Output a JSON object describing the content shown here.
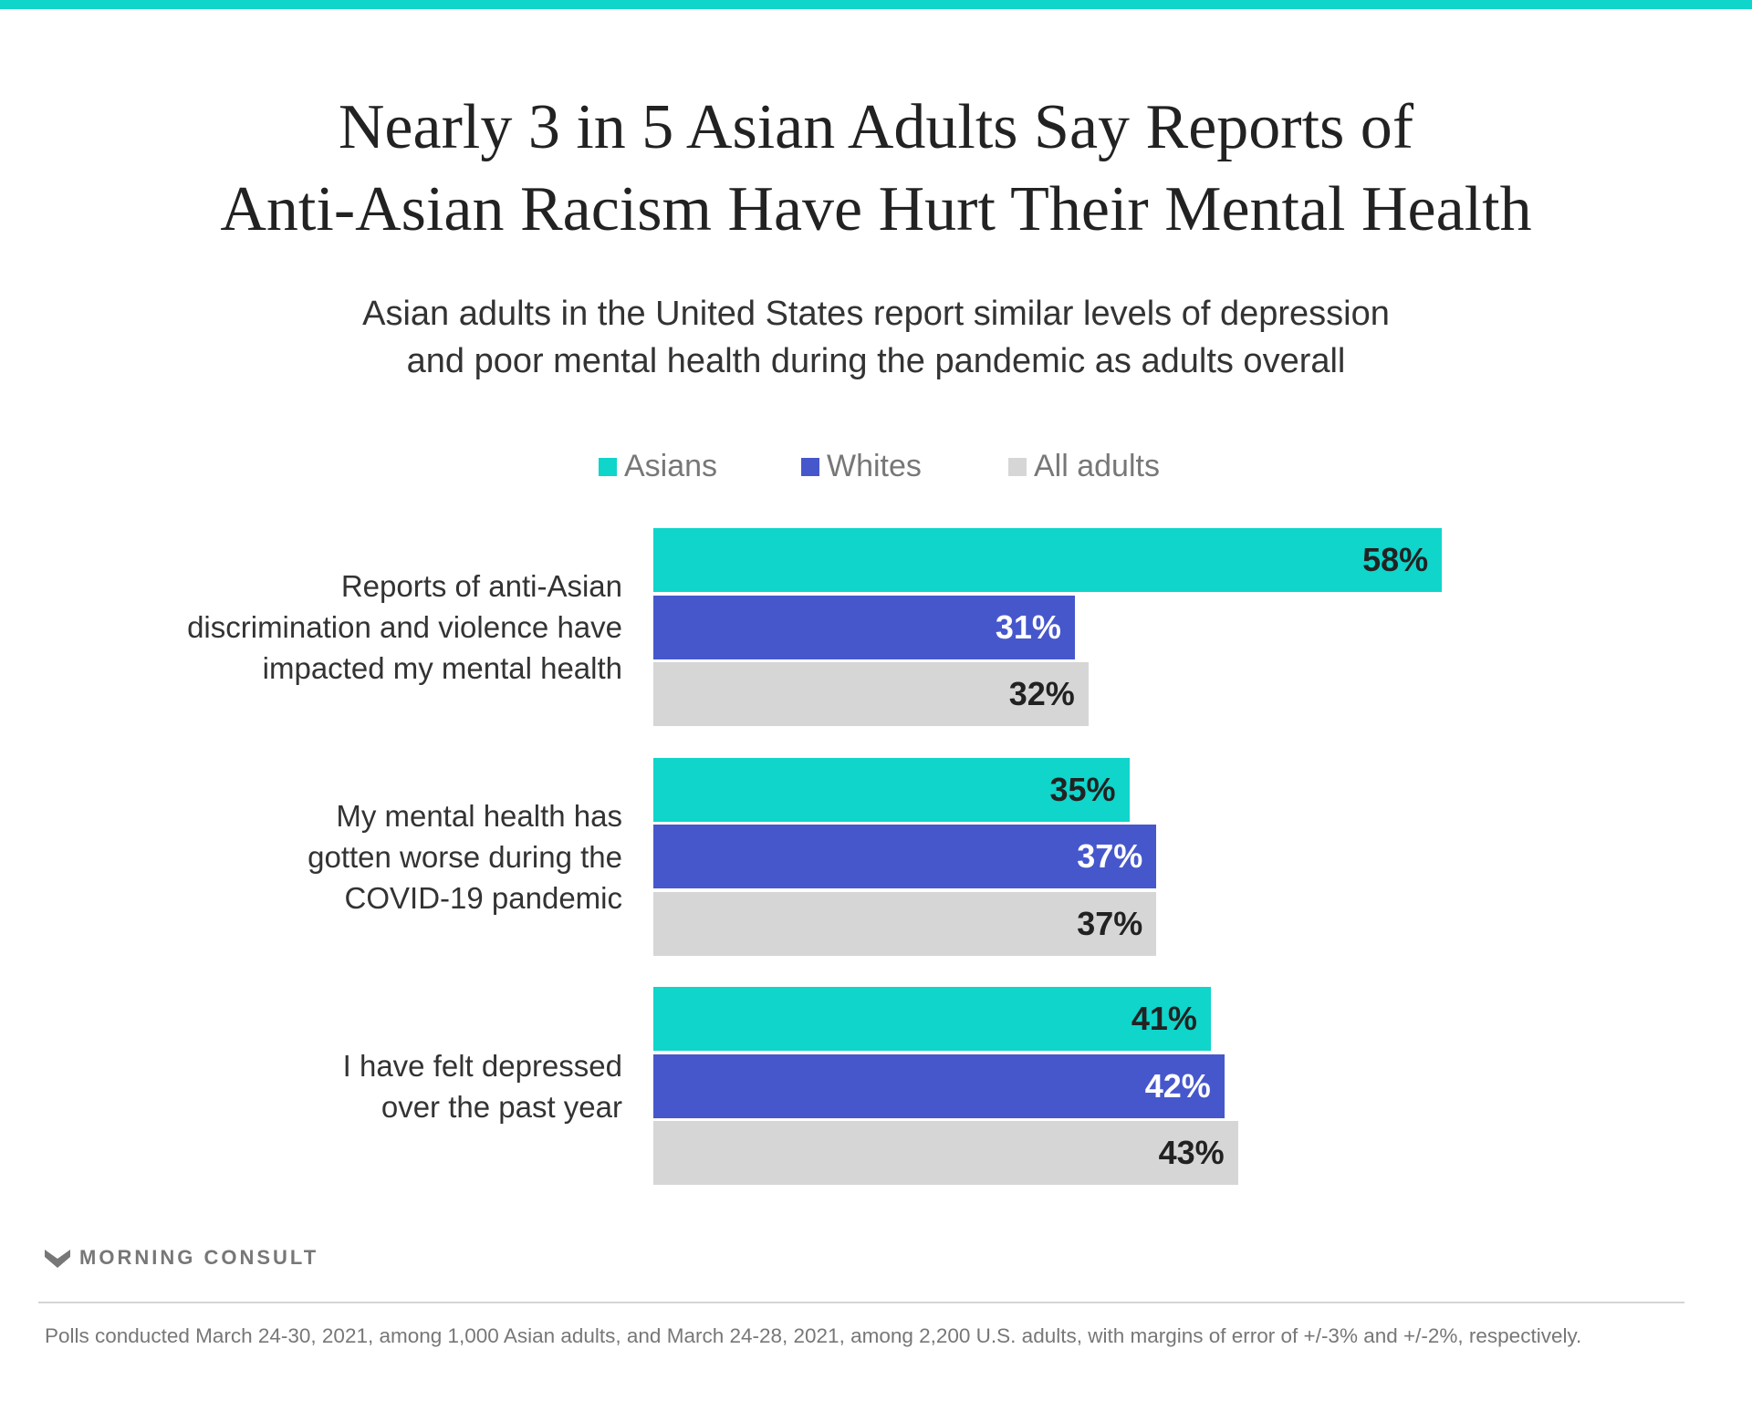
{
  "chart_data": {
    "type": "bar",
    "orientation": "horizontal",
    "title": "Nearly 3 in 5 Asian Adults Say Reports of Anti-Asian Racism Have Hurt Their Mental Health",
    "title_lines": [
      "Nearly 3 in 5 Asian Adults Say Reports of",
      "Anti-Asian Racism Have Hurt Their Mental Health"
    ],
    "subtitle_lines": [
      "Asian adults in the United States report similar levels of depression",
      "and poor mental health during the pandemic as adults overall"
    ],
    "categories": [
      "Reports of anti-Asian discrimination and violence have impacted my mental health",
      "My mental health has gotten worse during the COVID-19 pandemic",
      "I have felt depressed over the past year"
    ],
    "category_lines": [
      [
        "Reports of anti-Asian",
        "discrimination and violence have",
        "impacted my mental health"
      ],
      [
        "My mental health has",
        "gotten worse during the",
        "COVID-19 pandemic"
      ],
      [
        "I have felt depressed",
        "over the past year"
      ]
    ],
    "series": [
      {
        "name": "Asians",
        "color": "#0fd5cb",
        "label_color": "#222222",
        "values": [
          58,
          35,
          41
        ]
      },
      {
        "name": "Whites",
        "color": "#4657cc",
        "label_color": "#ffffff",
        "values": [
          31,
          37,
          42
        ]
      },
      {
        "name": "All adults",
        "color": "#d6d6d6",
        "label_color": "#222222",
        "values": [
          32,
          37,
          43
        ]
      }
    ],
    "value_suffix": "%",
    "xlim": [
      0,
      100
    ],
    "legend": "top-center",
    "grid": false
  },
  "brand": "MORNING CONSULT",
  "footnote": "Polls conducted March 24-30, 2021, among 1,000 Asian adults, and March 24-28, 2021, among 2,200 U.S. adults, with margins of error of +/-3% and +/-2%, respectively.",
  "accent_color": "#0fd5cb"
}
